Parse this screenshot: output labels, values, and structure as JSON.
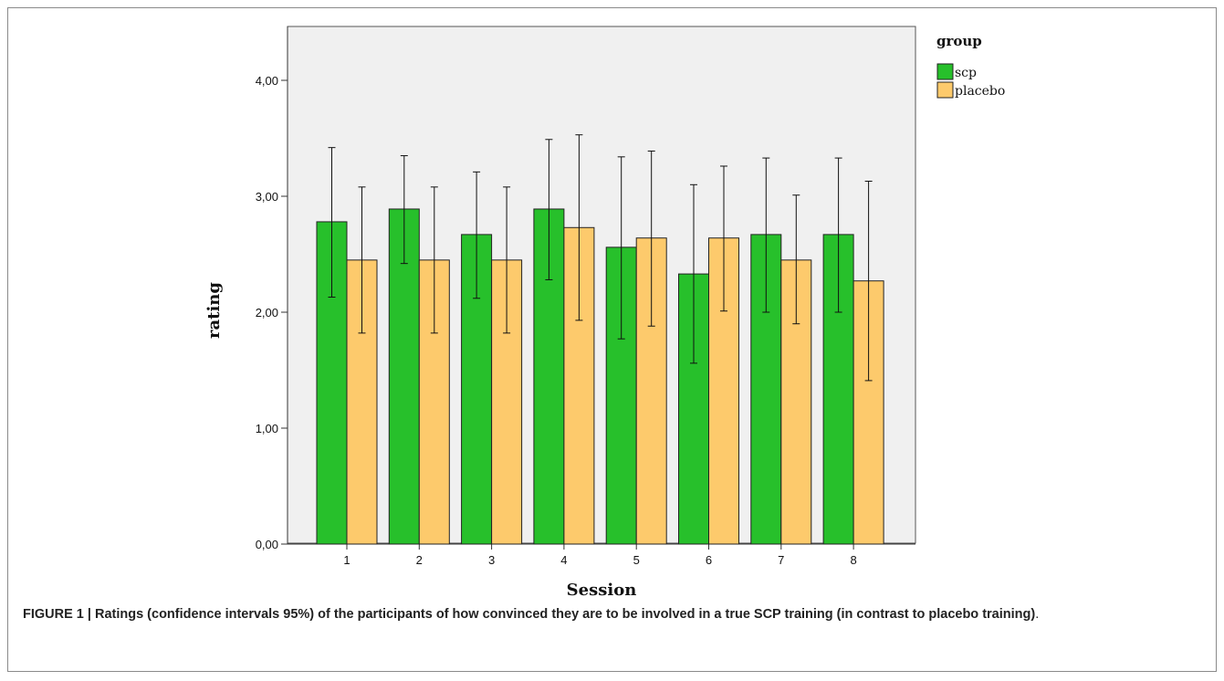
{
  "chart_data": {
    "type": "bar",
    "xlabel": "Session",
    "ylabel": "rating",
    "ylim": [
      0,
      4.4
    ],
    "yticks": [
      0,
      1,
      2,
      3,
      4
    ],
    "ytick_labels": [
      "0,00",
      "1,00",
      "2,00",
      "3,00",
      "4,00"
    ],
    "categories": [
      "1",
      "2",
      "3",
      "4",
      "5",
      "6",
      "7",
      "8"
    ],
    "legend": {
      "title": "group",
      "position": "top-right"
    },
    "plot_background": "#f0f0f0",
    "grid": false,
    "series": [
      {
        "name": "scp",
        "color": "#27c02b",
        "values": [
          2.78,
          2.89,
          2.67,
          2.89,
          2.56,
          2.33,
          2.67,
          2.67
        ],
        "ci_low": [
          2.13,
          2.42,
          2.12,
          2.28,
          1.77,
          1.56,
          2.0,
          2.0
        ],
        "ci_high": [
          3.42,
          3.35,
          3.21,
          3.49,
          3.34,
          3.1,
          3.33,
          3.33
        ]
      },
      {
        "name": "placebo",
        "color": "#fdca6c",
        "values": [
          2.45,
          2.45,
          2.45,
          2.73,
          2.64,
          2.64,
          2.45,
          2.27
        ],
        "ci_low": [
          1.82,
          1.82,
          1.82,
          1.93,
          1.88,
          2.01,
          1.9,
          1.41
        ],
        "ci_high": [
          3.08,
          3.08,
          3.08,
          3.53,
          3.39,
          3.26,
          3.01,
          3.13
        ]
      }
    ]
  },
  "caption": {
    "bold": "FIGURE 1 | Ratings (confidence intervals 95%) of the participants of how convinced they are to be involved in a true SCP training (in contrast to placebo training)",
    "tail": "."
  }
}
